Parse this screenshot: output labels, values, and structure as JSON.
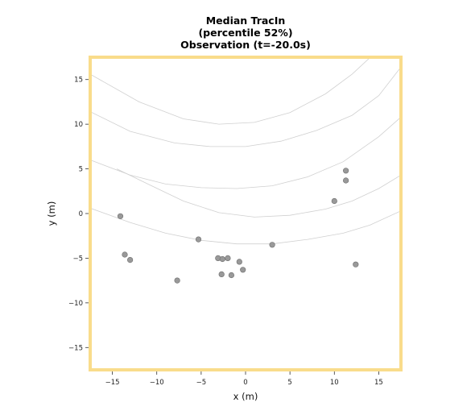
{
  "chart_data": {
    "type": "scatter",
    "title": [
      "Median TracIn",
      "(percentile 52%)",
      "Observation (t=-20.0s)"
    ],
    "xlabel": "x (m)",
    "ylabel": "y (m)",
    "xlim": [
      -17.5,
      17.5
    ],
    "ylim": [
      -17.5,
      17.5
    ],
    "xticks": [
      -15,
      -10,
      -5,
      0,
      5,
      10,
      15
    ],
    "yticks": [
      -15,
      -10,
      -5,
      0,
      5,
      10,
      15
    ],
    "xtick_labels": [
      "−15",
      "−10",
      "−5",
      "0",
      "5",
      "10",
      "15"
    ],
    "ytick_labels": [
      "−15",
      "−10",
      "−5",
      "0",
      "5",
      "10",
      "15"
    ],
    "grid": false,
    "frame_color": "#f9dc8b",
    "point_color": "#999999",
    "lane_color": "#d0d0d0",
    "points": [
      {
        "x": -14.1,
        "y": -0.3
      },
      {
        "x": -13.6,
        "y": -4.6
      },
      {
        "x": -13.0,
        "y": -5.2
      },
      {
        "x": -7.7,
        "y": -7.5
      },
      {
        "x": -5.3,
        "y": -2.9
      },
      {
        "x": -3.1,
        "y": -5.0
      },
      {
        "x": -2.6,
        "y": -5.1
      },
      {
        "x": -2.0,
        "y": -5.0
      },
      {
        "x": -2.7,
        "y": -6.8
      },
      {
        "x": -1.6,
        "y": -6.9
      },
      {
        "x": -0.7,
        "y": -5.4
      },
      {
        "x": -0.3,
        "y": -6.3
      },
      {
        "x": 3.0,
        "y": -3.5
      },
      {
        "x": 10.0,
        "y": 1.4
      },
      {
        "x": 11.3,
        "y": 4.8
      },
      {
        "x": 11.3,
        "y": 3.7
      },
      {
        "x": 12.4,
        "y": -5.7
      }
    ],
    "lane_curves": [
      [
        [
          -17.5,
          15.6
        ],
        [
          -12,
          12.5
        ],
        [
          -7,
          10.6
        ],
        [
          -3,
          10.0
        ],
        [
          1,
          10.2
        ],
        [
          5,
          11.3
        ],
        [
          9,
          13.4
        ],
        [
          12,
          15.6
        ],
        [
          16,
          19.3
        ]
      ],
      [
        [
          -17.5,
          11.4
        ],
        [
          -13,
          9.2
        ],
        [
          -8,
          7.9
        ],
        [
          -4,
          7.5
        ],
        [
          0,
          7.5
        ],
        [
          4,
          8.1
        ],
        [
          8,
          9.3
        ],
        [
          12,
          11.0
        ],
        [
          15,
          13.2
        ],
        [
          17.5,
          16.4
        ]
      ],
      [
        [
          -17.5,
          6.0
        ],
        [
          -13,
          4.3
        ],
        [
          -9,
          3.3
        ],
        [
          -5,
          2.9
        ],
        [
          -1,
          2.8
        ],
        [
          3,
          3.1
        ],
        [
          7,
          4.1
        ],
        [
          11,
          5.8
        ],
        [
          15,
          8.6
        ],
        [
          17.5,
          10.8
        ]
      ],
      [
        [
          -14.5,
          5.0
        ],
        [
          -11,
          3.3
        ],
        [
          -7,
          1.4
        ],
        [
          -3,
          0.1
        ],
        [
          1,
          -0.4
        ],
        [
          5,
          -0.2
        ],
        [
          9,
          0.5
        ],
        [
          12,
          1.4
        ],
        [
          15,
          2.8
        ],
        [
          17.5,
          4.3
        ]
      ],
      [
        [
          -17.5,
          0.6
        ],
        [
          -13,
          -1.0
        ],
        [
          -9,
          -2.2
        ],
        [
          -5,
          -3.0
        ],
        [
          -1,
          -3.4
        ],
        [
          3,
          -3.4
        ],
        [
          7,
          -2.9
        ],
        [
          11,
          -2.2
        ],
        [
          14,
          -1.3
        ],
        [
          17.5,
          0.3
        ]
      ]
    ]
  }
}
